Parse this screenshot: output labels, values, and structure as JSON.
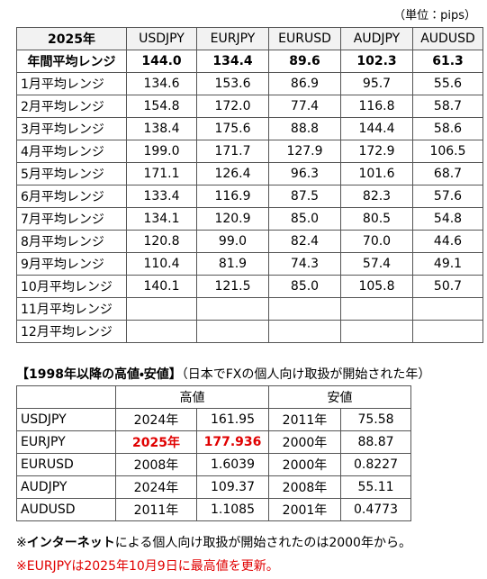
{
  "unit": "（単位：pips）",
  "range_table": {
    "header": [
      "2025年",
      "USDJPY",
      "EURJPY",
      "EURUSD",
      "AUDJPY",
      "AUDUSD"
    ],
    "annual": [
      "年間平均レンジ",
      "144.0",
      "134.4",
      "89.6",
      "102.3",
      "61.3"
    ],
    "rows": [
      [
        "1月平均レンジ",
        "134.6",
        "153.6",
        "86.9",
        "95.7",
        "55.6"
      ],
      [
        "2月平均レンジ",
        "154.8",
        "172.0",
        "77.4",
        "116.8",
        "58.7"
      ],
      [
        "3月平均レンジ",
        "138.4",
        "175.6",
        "88.8",
        "144.4",
        "58.6"
      ],
      [
        "4月平均レンジ",
        "199.0",
        "171.7",
        "127.9",
        "172.9",
        "106.5"
      ],
      [
        "5月平均レンジ",
        "171.1",
        "126.4",
        "96.3",
        "101.6",
        "68.7"
      ],
      [
        "6月平均レンジ",
        "133.4",
        "116.9",
        "87.5",
        "82.3",
        "57.6"
      ],
      [
        "7月平均レンジ",
        "134.1",
        "120.9",
        "85.0",
        "80.5",
        "54.8"
      ],
      [
        "8月平均レンジ",
        "120.8",
        "99.0",
        "82.4",
        "70.0",
        "44.6"
      ],
      [
        "9月平均レンジ",
        "110.4",
        "81.9",
        "74.3",
        "57.4",
        "49.1"
      ],
      [
        "10月平均レンジ",
        "140.1",
        "121.5",
        "85.0",
        "105.8",
        "50.7"
      ],
      [
        "11月平均レンジ"
      ],
      [
        "12月平均レンジ"
      ]
    ]
  },
  "extremes": {
    "title": "【1998年以降の高値・安値】",
    "subtitle": "（日本でFXの個人向け取扱が開始された年）",
    "header": [
      "高値",
      "安値"
    ],
    "rows": [
      [
        "USDJPY",
        "2024年",
        "161.95",
        "2011年",
        "75.58"
      ],
      [
        "EURJPY",
        "2025年",
        "177.936",
        "2000年",
        "88.87"
      ],
      [
        "EURUSD",
        "2008年",
        "1.6039",
        "2000年",
        "0.8227"
      ],
      [
        "AUDJPY",
        "2024年",
        "109.37",
        "2008年",
        "55.11"
      ],
      [
        "AUDUSD",
        "2011年",
        "1.1085",
        "2001年",
        "0.4773"
      ]
    ]
  },
  "notes": [
    [
      "※",
      "インターネット",
      "による個人向け取扱が開始されたのは2000年から。"
    ],
    [
      "※EURJPYは2025年10月9日に最高値を更新。"
    ]
  ]
}
